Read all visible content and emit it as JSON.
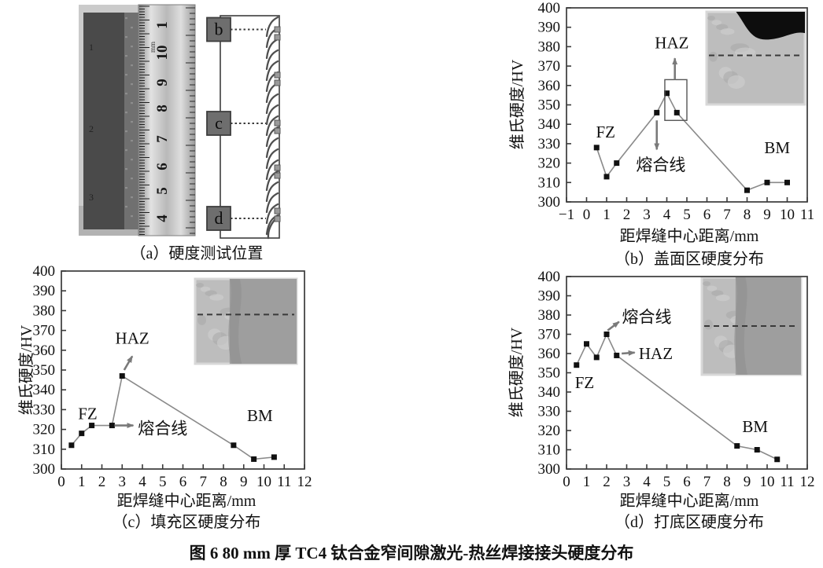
{
  "figure": {
    "caption": "图 6  80 mm 厚 TC4 钛合金窄间隙激光-热丝焊接接头硬度分布"
  },
  "panel_a": {
    "caption": "（a）硬度测试位置",
    "positions": [
      "b",
      "c",
      "d"
    ],
    "ruler_numbers": [
      "1",
      "10",
      "9",
      "8",
      "7",
      "6",
      "5",
      "4"
    ],
    "ruler_unit": "mm",
    "specimen_marks": [
      "1",
      "2",
      "3"
    ]
  },
  "chart_data": [
    {
      "id": "b",
      "type": "line",
      "title": "（b）盖面区硬度分布",
      "xlabel": "距焊缝中心距离/mm",
      "ylabel": "维氏硬度/HV",
      "xlim": [
        -1,
        11
      ],
      "ylim": [
        300,
        400
      ],
      "xticks": [
        -1,
        0,
        1,
        2,
        3,
        4,
        5,
        6,
        7,
        8,
        9,
        10,
        11
      ],
      "yticks": [
        300,
        310,
        320,
        330,
        340,
        350,
        360,
        370,
        380,
        390,
        400
      ],
      "x": [
        0.5,
        1,
        1.5,
        3.5,
        4,
        4.5,
        8,
        9,
        10
      ],
      "y": [
        328,
        313,
        320,
        346,
        356,
        346,
        306,
        310,
        310
      ],
      "annotations": [
        {
          "label": "FZ",
          "x": 0.95,
          "y": 336
        },
        {
          "label": "HAZ",
          "x": 4.25,
          "y": 382
        },
        {
          "label": "熔合线",
          "x": 3.7,
          "y": 319
        },
        {
          "label": "BM",
          "x": 9.5,
          "y": 328
        }
      ],
      "arrows": [
        {
          "x1": 3.5,
          "y1": 342,
          "x2": 3.5,
          "y2": 327
        },
        {
          "x1": 4.4,
          "y1": 363,
          "x2": 4.4,
          "y2": 374
        }
      ],
      "box": {
        "x1": 3.9,
        "y1": 342,
        "x2": 5.0,
        "y2": 363
      },
      "inset": "weld-cap-micrograph-with-fusion-line"
    },
    {
      "id": "c",
      "type": "line",
      "title": "（c）填充区硬度分布",
      "xlabel": "距焊缝中心距离/mm",
      "ylabel": "维氏硬度/HV",
      "xlim": [
        0,
        12
      ],
      "ylim": [
        300,
        400
      ],
      "xticks": [
        0,
        1,
        2,
        3,
        4,
        5,
        6,
        7,
        8,
        9,
        10,
        11,
        12
      ],
      "yticks": [
        300,
        310,
        320,
        330,
        340,
        350,
        360,
        370,
        380,
        390,
        400
      ],
      "x": [
        0.5,
        1,
        1.5,
        2.5,
        3,
        8.5,
        9.5,
        10.5
      ],
      "y": [
        312,
        318,
        322,
        322,
        347,
        312,
        305,
        306
      ],
      "annotations": [
        {
          "label": "FZ",
          "x": 1.3,
          "y": 328
        },
        {
          "label": "HAZ",
          "x": 3.5,
          "y": 366
        },
        {
          "label": "熔合线",
          "x": 5.0,
          "y": 320.5
        },
        {
          "label": "BM",
          "x": 9.8,
          "y": 327
        }
      ],
      "arrows": [
        {
          "x1": 3.1,
          "y1": 350,
          "x2": 3.5,
          "y2": 357
        },
        {
          "x1": 2.62,
          "y1": 322,
          "x2": 3.55,
          "y2": 322
        }
      ],
      "box": null,
      "inset": "fill-zone-micrograph-with-fusion-line"
    },
    {
      "id": "d",
      "type": "line",
      "title": "（d）打底区硬度分布",
      "xlabel": "距焊缝中心距离/mm",
      "ylabel": "维氏硬度/HV",
      "xlim": [
        0,
        12
      ],
      "ylim": [
        300,
        400
      ],
      "xticks": [
        0,
        1,
        2,
        3,
        4,
        5,
        6,
        7,
        8,
        9,
        10,
        11,
        12
      ],
      "yticks": [
        300,
        310,
        320,
        330,
        340,
        350,
        360,
        370,
        380,
        390,
        400
      ],
      "x": [
        0.5,
        1,
        1.5,
        2,
        2.5,
        8.5,
        9.5,
        10.5
      ],
      "y": [
        354,
        365,
        358,
        370,
        359,
        312,
        310,
        305
      ],
      "annotations": [
        {
          "label": "FZ",
          "x": 0.9,
          "y": 345
        },
        {
          "label": "熔合线",
          "x": 4.0,
          "y": 379
        },
        {
          "label": "HAZ",
          "x": 4.45,
          "y": 360
        },
        {
          "label": "BM",
          "x": 9.4,
          "y": 322
        }
      ],
      "arrows": [
        {
          "x1": 2.05,
          "y1": 372,
          "x2": 2.62,
          "y2": 376.5
        },
        {
          "x1": 2.75,
          "y1": 360,
          "x2": 3.4,
          "y2": 360.5
        }
      ],
      "box": null,
      "inset": "root-zone-micrograph-with-fusion-line"
    }
  ],
  "colors": {
    "line": "#8a8a8a",
    "marker": "#111111",
    "axis": "#3a3a3a",
    "arrow": "#7a7a7a"
  }
}
